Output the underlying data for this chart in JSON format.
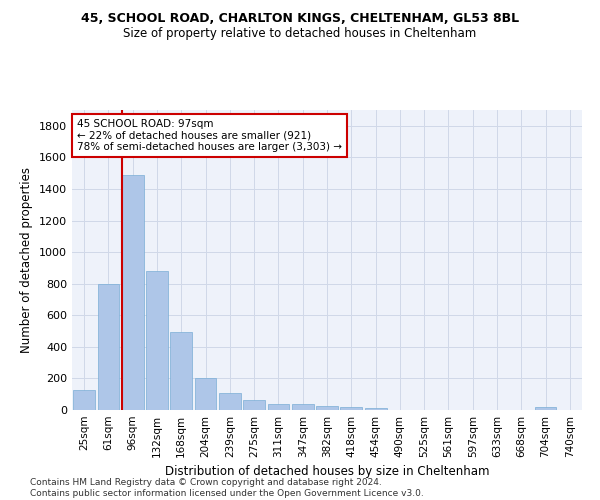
{
  "title_line1": "45, SCHOOL ROAD, CHARLTON KINGS, CHELTENHAM, GL53 8BL",
  "title_line2": "Size of property relative to detached houses in Cheltenham",
  "xlabel": "Distribution of detached houses by size in Cheltenham",
  "ylabel": "Number of detached properties",
  "categories": [
    "25sqm",
    "61sqm",
    "96sqm",
    "132sqm",
    "168sqm",
    "204sqm",
    "239sqm",
    "275sqm",
    "311sqm",
    "347sqm",
    "382sqm",
    "418sqm",
    "454sqm",
    "490sqm",
    "525sqm",
    "561sqm",
    "597sqm",
    "633sqm",
    "668sqm",
    "704sqm",
    "740sqm"
  ],
  "values": [
    125,
    800,
    1490,
    880,
    495,
    205,
    105,
    65,
    38,
    35,
    27,
    22,
    10,
    0,
    0,
    0,
    0,
    0,
    0,
    18,
    0
  ],
  "bar_color": "#aec6e8",
  "bar_edge_color": "#7aaed6",
  "vline_color": "#cc0000",
  "annotation_text": "45 SCHOOL ROAD: 97sqm\n← 22% of detached houses are smaller (921)\n78% of semi-detached houses are larger (3,303) →",
  "annotation_box_color": "#ffffff",
  "annotation_box_edge": "#cc0000",
  "ylim": [
    0,
    1900
  ],
  "yticks": [
    0,
    200,
    400,
    600,
    800,
    1000,
    1200,
    1400,
    1600,
    1800
  ],
  "footer": "Contains HM Land Registry data © Crown copyright and database right 2024.\nContains public sector information licensed under the Open Government Licence v3.0.",
  "grid_color": "#d0d8e8",
  "bg_color": "#eef2fa"
}
